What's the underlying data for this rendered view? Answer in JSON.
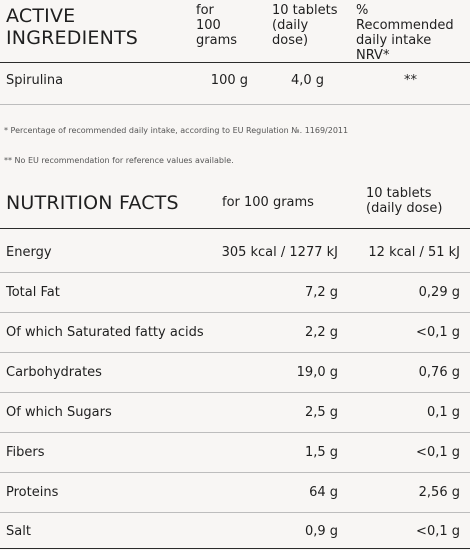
{
  "active_ingredients": {
    "title_line1": "ACTIVE",
    "title_line2": "INGREDIENTS",
    "col_per100": [
      "for",
      "100",
      "grams"
    ],
    "col_dose": [
      "10 tablets",
      "(daily",
      "dose)"
    ],
    "col_nrv": [
      "% Recommended",
      "daily intake",
      "NRV*"
    ],
    "rows": [
      {
        "name": "Spirulina",
        "per100": "100 g",
        "dose": "4,0 g",
        "nrv": "**"
      }
    ]
  },
  "footnotes": {
    "note1": "*  Percentage of recommended daily intake, according to EU Regulation №. 1169/2011",
    "note2": "** No EU recommendation for reference values available."
  },
  "nutrition_facts": {
    "title": "NUTRITION FACTS",
    "col_per100": "for 100 grams",
    "col_dose": [
      "10 tablets",
      "(daily dose)"
    ],
    "rows": [
      {
        "name": "Energy",
        "per100": "305 kcal / 1277 kJ",
        "dose": "12 kcal / 51 kJ"
      },
      {
        "name": "Total Fat",
        "per100": "7,2 g",
        "dose": "0,29 g"
      },
      {
        "name": "Of which Saturated fatty acids",
        "per100": "2,2 g",
        "dose": "<0,1 g"
      },
      {
        "name": "Carbohydrates",
        "per100": "19,0 g",
        "dose": "0,76 g"
      },
      {
        "name": "Of which Sugars",
        "per100": "2,5 g",
        "dose": "0,1 g"
      },
      {
        "name": "Fibers",
        "per100": "1,5 g",
        "dose": "<0,1 g"
      },
      {
        "name": "Proteins",
        "per100": "64 g",
        "dose": "2,56 g"
      },
      {
        "name": "Salt",
        "per100": "0,9 g",
        "dose": "<0,1 g"
      }
    ]
  }
}
